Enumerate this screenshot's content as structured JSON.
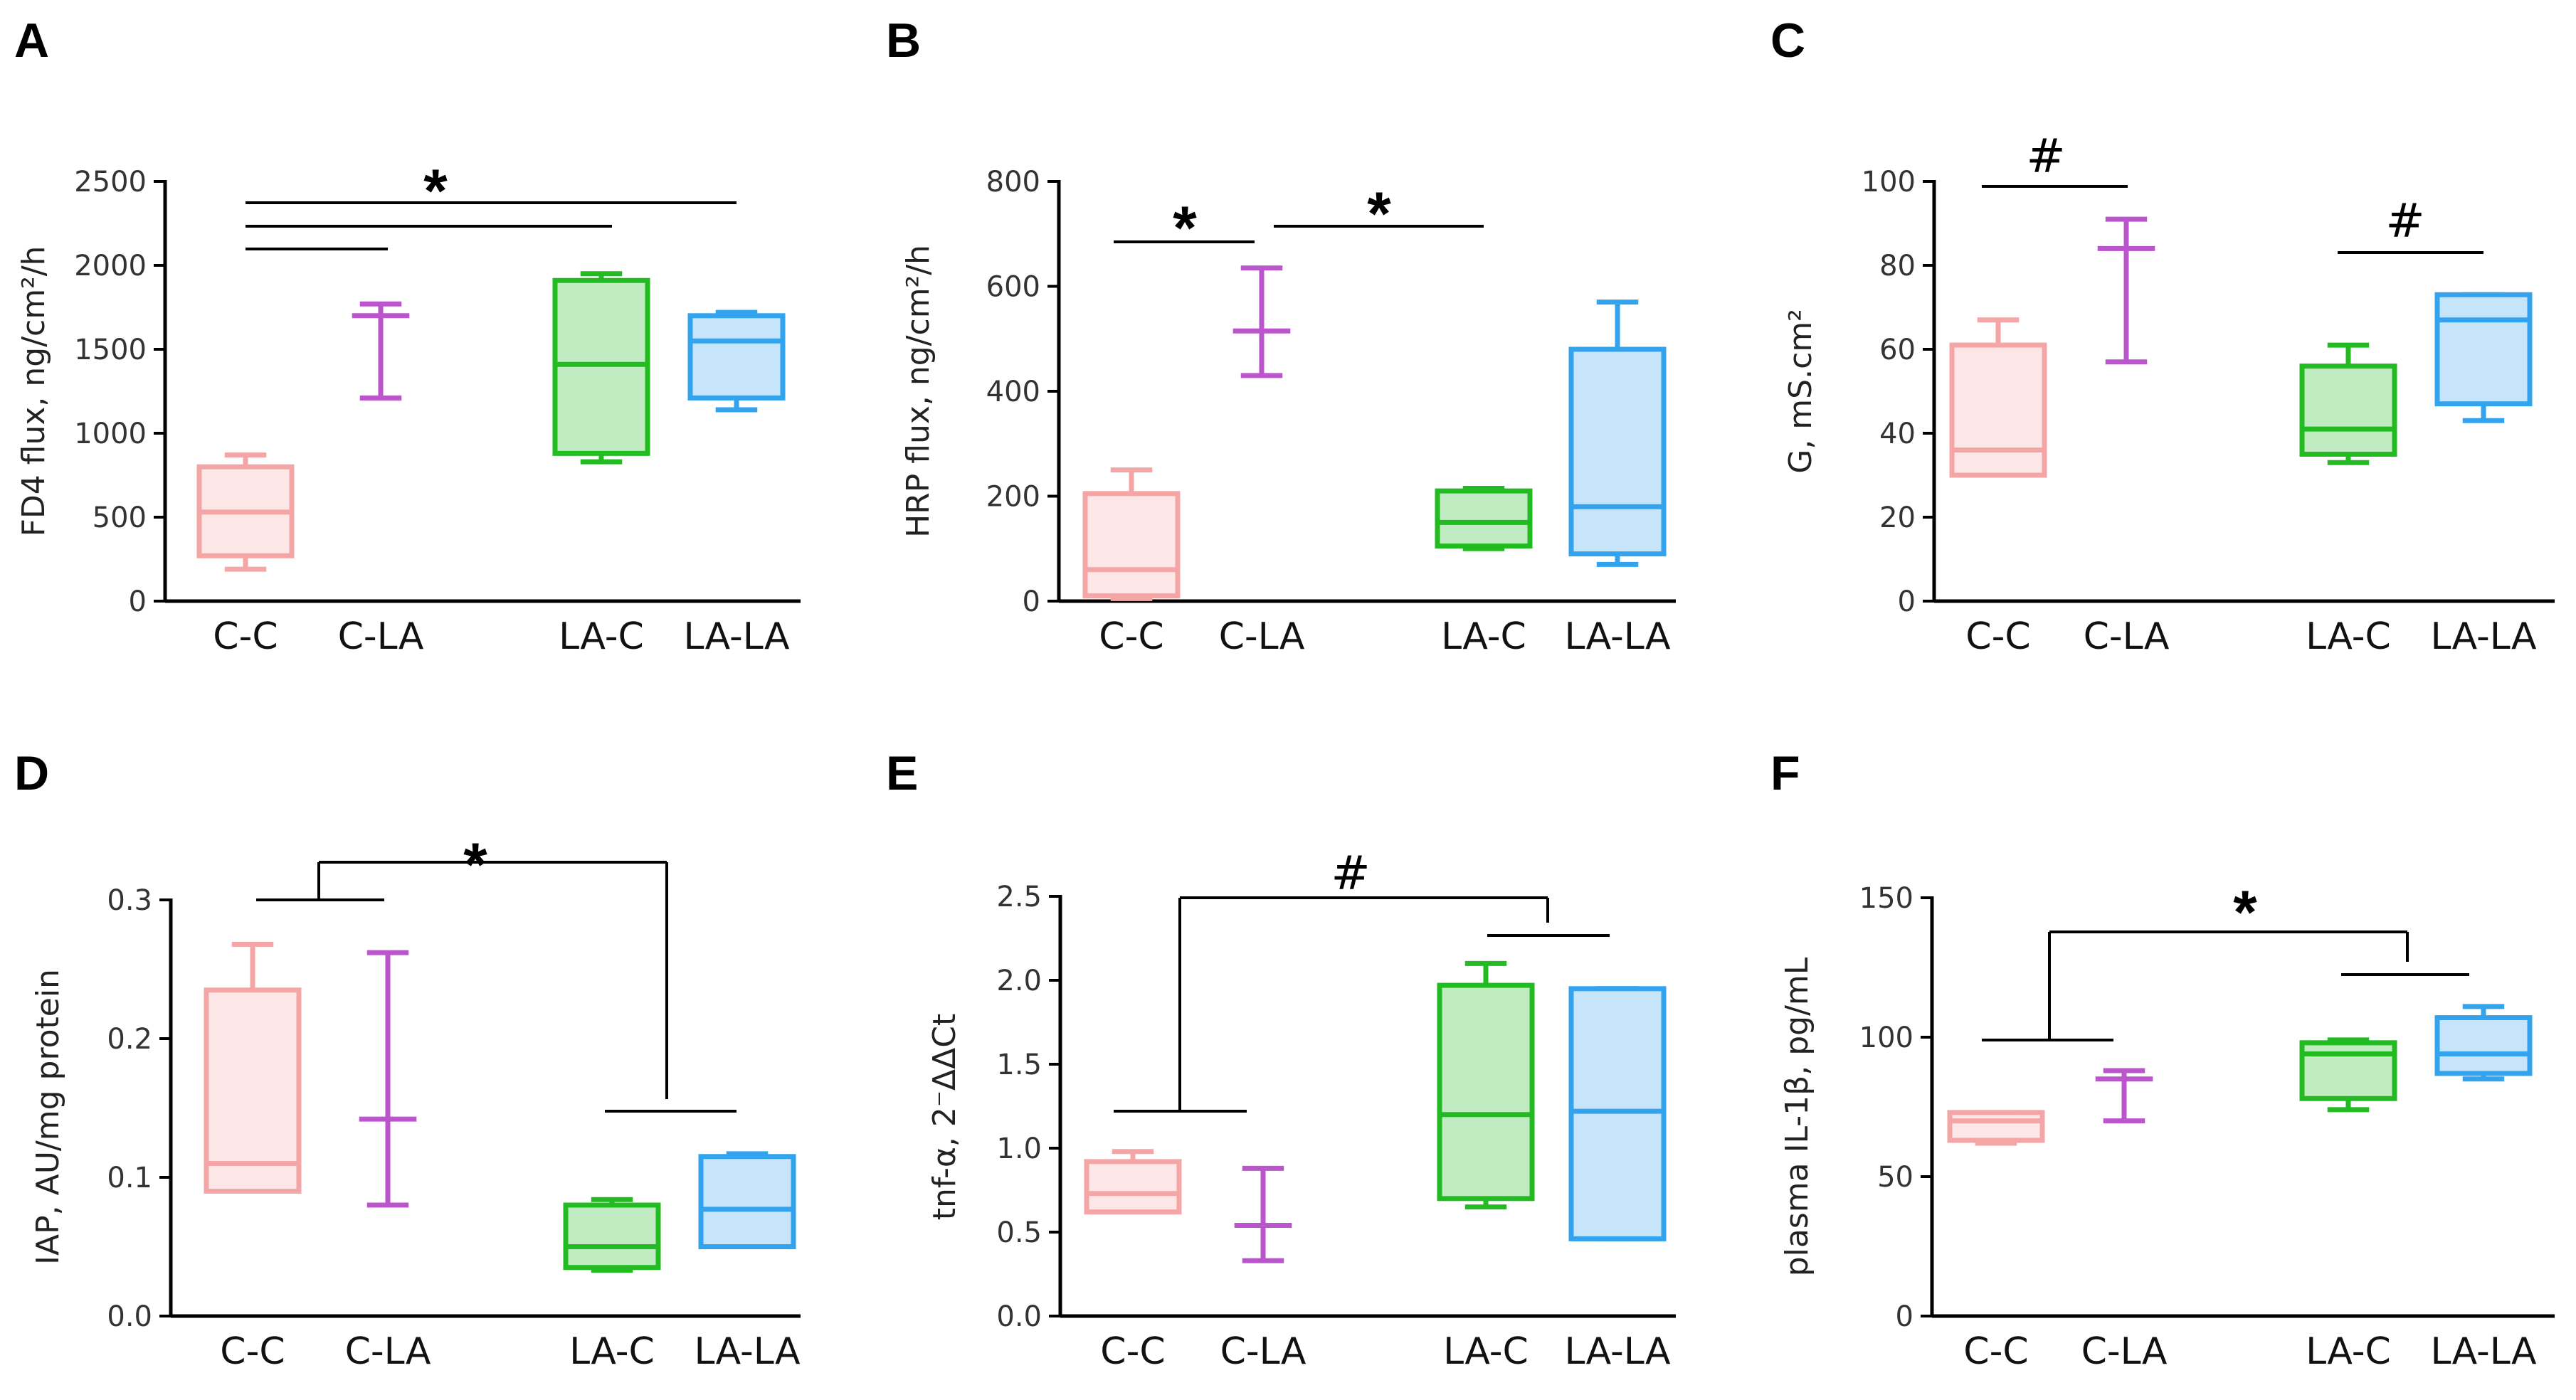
{
  "figure": {
    "palette": {
      "C-C": "#f4a6a6",
      "C-LA": "#bb55cc",
      "LA-C": "#22bb22",
      "LA-LA": "#33a3ee"
    }
  },
  "chart_data": [
    {
      "type": "box",
      "panel": "A",
      "ylabel": "FD4 flux, ng/cm²/h",
      "ylim": [
        0,
        2500
      ],
      "yticks": [
        0,
        500,
        1000,
        1500,
        2000,
        2500
      ],
      "categories": [
        "C-C",
        "C-LA",
        "LA-C",
        "LA-LA"
      ],
      "boxes": [
        {
          "min": 190,
          "q1": 270,
          "median": 530,
          "q3": 800,
          "max": 870
        },
        {
          "min": 1210,
          "q1": 1690,
          "median": 1700,
          "q3": 1700,
          "max": 1770
        },
        {
          "min": 830,
          "q1": 880,
          "median": 1410,
          "q3": 1910,
          "max": 1950
        },
        {
          "min": 1140,
          "q1": 1210,
          "median": 1550,
          "q3": 1700,
          "max": 1720
        }
      ],
      "annotations": [
        {
          "text": "*"
        }
      ]
    },
    {
      "type": "box",
      "panel": "B",
      "ylabel": "HRP flux, ng/cm²/h",
      "ylim": [
        0,
        800
      ],
      "yticks": [
        0,
        200,
        400,
        600,
        800
      ],
      "categories": [
        "C-C",
        "C-LA",
        "LA-C",
        "LA-LA"
      ],
      "boxes": [
        {
          "min": 5,
          "q1": 10,
          "median": 60,
          "q3": 205,
          "max": 250
        },
        {
          "min": 430,
          "q1": 515,
          "median": 515,
          "q3": 515,
          "max": 635
        },
        {
          "min": 100,
          "q1": 105,
          "median": 150,
          "q3": 210,
          "max": 215
        },
        {
          "min": 70,
          "q1": 90,
          "median": 180,
          "q3": 480,
          "max": 570
        }
      ],
      "annotations": [
        {
          "text": "*"
        },
        {
          "text": "*"
        }
      ]
    },
    {
      "type": "box",
      "panel": "C",
      "ylabel": "G, mS.cm²",
      "ylim": [
        0,
        100
      ],
      "yticks": [
        0,
        20,
        40,
        60,
        80,
        100
      ],
      "categories": [
        "C-C",
        "C-LA",
        "LA-C",
        "LA-LA"
      ],
      "boxes": [
        {
          "min": 30,
          "q1": 30,
          "median": 36,
          "q3": 61,
          "max": 67
        },
        {
          "min": 57,
          "q1": 84,
          "median": 84,
          "q3": 84,
          "max": 91
        },
        {
          "min": 33,
          "q1": 35,
          "median": 41,
          "q3": 56,
          "max": 61
        },
        {
          "min": 43,
          "q1": 47,
          "median": 67,
          "q3": 73,
          "max": 73
        }
      ],
      "annotations": [
        {
          "text": "#"
        },
        {
          "text": "#"
        }
      ]
    },
    {
      "type": "box",
      "panel": "D",
      "ylabel": "IAP, AU/mg protein",
      "ylim": [
        0,
        0.3
      ],
      "yticks": [
        "0.0",
        "0.1",
        "0.2",
        "0.3"
      ],
      "categories": [
        "C-C",
        "C-LA",
        "LA-C",
        "LA-LA"
      ],
      "boxes": [
        {
          "min": 0.09,
          "q1": 0.09,
          "median": 0.11,
          "q3": 0.235,
          "max": 0.268
        },
        {
          "min": 0.08,
          "q1": 0.142,
          "median": 0.142,
          "q3": 0.142,
          "max": 0.262
        },
        {
          "min": 0.033,
          "q1": 0.035,
          "median": 0.05,
          "q3": 0.08,
          "max": 0.084
        },
        {
          "min": 0.05,
          "q1": 0.05,
          "median": 0.077,
          "q3": 0.115,
          "max": 0.117
        }
      ],
      "annotations": [
        {
          "text": "*"
        }
      ]
    },
    {
      "type": "box",
      "panel": "E",
      "ylabel": "tnf-α, 2⁻ΔΔCt",
      "ylim": [
        0,
        2.5
      ],
      "yticks": [
        "0.0",
        "0.5",
        "1.0",
        "1.5",
        "2.0",
        "2.5"
      ],
      "categories": [
        "C-C",
        "C-LA",
        "LA-C",
        "LA-LA"
      ],
      "boxes": [
        {
          "min": 0.62,
          "q1": 0.62,
          "median": 0.73,
          "q3": 0.92,
          "max": 0.98
        },
        {
          "min": 0.33,
          "q1": 0.54,
          "median": 0.54,
          "q3": 0.54,
          "max": 0.88
        },
        {
          "min": 0.65,
          "q1": 0.7,
          "median": 1.2,
          "q3": 1.97,
          "max": 2.1
        },
        {
          "min": 0.46,
          "q1": 0.46,
          "median": 1.22,
          "q3": 1.95,
          "max": 1.95
        }
      ],
      "annotations": [
        {
          "text": "#"
        }
      ]
    },
    {
      "type": "box",
      "panel": "F",
      "ylabel": "plasma IL-1β, pg/mL",
      "ylim": [
        0,
        150
      ],
      "yticks": [
        0,
        50,
        100,
        150
      ],
      "categories": [
        "C-C",
        "C-LA",
        "LA-C",
        "LA-LA"
      ],
      "boxes": [
        {
          "min": 62,
          "q1": 63,
          "median": 70,
          "q3": 73,
          "max": 73
        },
        {
          "min": 70,
          "q1": 85,
          "median": 85,
          "q3": 85,
          "max": 88
        },
        {
          "min": 74,
          "q1": 78,
          "median": 94,
          "q3": 98,
          "max": 99
        },
        {
          "min": 85,
          "q1": 87,
          "median": 94,
          "q3": 107,
          "max": 111
        }
      ],
      "annotations": [
        {
          "text": "*"
        }
      ]
    }
  ]
}
